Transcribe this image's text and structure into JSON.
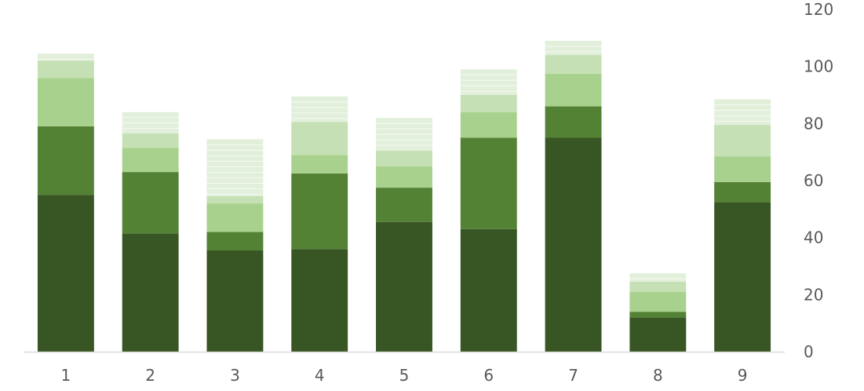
{
  "chart_data": {
    "type": "bar",
    "stacked": true,
    "categories": [
      "1",
      "2",
      "3",
      "4",
      "5",
      "6",
      "7",
      "8",
      "9"
    ],
    "ylim": [
      0,
      120
    ],
    "yticks": [
      0,
      20,
      40,
      60,
      80,
      100,
      120
    ],
    "y_axis_position": "right",
    "grid": false,
    "legend": "none",
    "series": [
      {
        "color": "#375623",
        "values": [
          55,
          41.5,
          35.5,
          36,
          45.5,
          43,
          75,
          12,
          52.5
        ]
      },
      {
        "color": "#548235",
        "values": [
          24,
          21.5,
          6.5,
          26.5,
          12,
          32,
          11,
          2,
          7
        ]
      },
      {
        "color": "#a9d18e",
        "values": [
          17,
          8.5,
          10,
          6.5,
          7.5,
          9,
          11.5,
          7,
          9
        ]
      },
      {
        "color": "#c5e0b4",
        "values": [
          6,
          5,
          2.5,
          11.5,
          5.5,
          6,
          6.5,
          3.5,
          11
        ]
      },
      {
        "color": "#e2efda",
        "values": [
          2.5,
          7.5,
          20,
          9,
          11.5,
          9,
          5,
          3,
          9
        ]
      }
    ],
    "colors": {
      "axis_line": "#d9d9d9",
      "tick_text": "#595959",
      "top_segment_lines": "#ffffff"
    }
  }
}
